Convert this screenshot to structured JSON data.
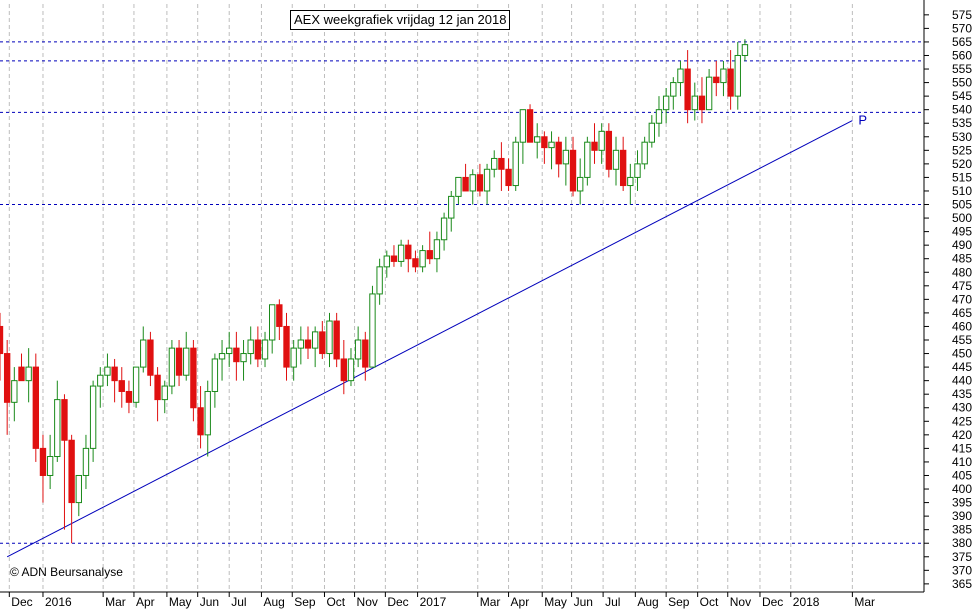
{
  "colors": {
    "up": "#1a8a1a",
    "down": "#e01010",
    "trendline": "#0000bb",
    "levels": "#0000bb",
    "grid": "#bdbdbd",
    "axis": "#000000"
  },
  "chart_data": {
    "type": "candlestick",
    "title": "AEX weekgrafiek vrijdag 12 jan 2018",
    "copyright": "© ADN Beursanalyse",
    "ylim": [
      362,
      579
    ],
    "y_ticks": [
      365,
      370,
      375,
      380,
      385,
      390,
      395,
      400,
      405,
      410,
      415,
      420,
      425,
      430,
      435,
      440,
      445,
      450,
      455,
      460,
      465,
      470,
      475,
      480,
      485,
      490,
      495,
      500,
      505,
      510,
      515,
      520,
      525,
      530,
      535,
      540,
      545,
      550,
      555,
      560,
      565,
      570,
      575
    ],
    "x_labels": [
      "Dec",
      "2016",
      "Mar",
      "Apr",
      "May",
      "Jun",
      "Jul",
      "Aug",
      "Sep",
      "Oct",
      "Nov",
      "Dec",
      "2017",
      "Mar",
      "Apr",
      "May",
      "Jun",
      "Jul",
      "Aug",
      "Sep",
      "Oct",
      "Nov",
      "Dec",
      "2018",
      "Mar"
    ],
    "x_label_weeks": [
      -4.7,
      0,
      8.4,
      12.7,
      17.3,
      21.6,
      26,
      30.5,
      34.8,
      39.3,
      43.5,
      47.8,
      52.3,
      60.7,
      65,
      69.7,
      73.8,
      78.2,
      82.7,
      87,
      91.4,
      95.6,
      100.1,
      104.4,
      113
    ],
    "x_week_range": [
      -6,
      123
    ],
    "weeks": [
      [
        -6,
        460,
        465,
        440,
        450
      ],
      [
        -5,
        450,
        455,
        420,
        432
      ],
      [
        -4,
        432,
        445,
        425,
        440
      ],
      [
        -3,
        445,
        450,
        440,
        440
      ],
      [
        -2,
        440,
        452,
        432,
        445
      ],
      [
        -1,
        445,
        450,
        410,
        415
      ],
      [
        0,
        415,
        420,
        395,
        405
      ],
      [
        1,
        405,
        420,
        400,
        412
      ],
      [
        2,
        412,
        440,
        410,
        433
      ],
      [
        3,
        433,
        435,
        385,
        418
      ],
      [
        4,
        418,
        420,
        380,
        395
      ],
      [
        5,
        395,
        405,
        390,
        405
      ],
      [
        6,
        405,
        420,
        400,
        415
      ],
      [
        7,
        415,
        440,
        410,
        438
      ],
      [
        8,
        438,
        445,
        430,
        442
      ],
      [
        9,
        442,
        450,
        438,
        445
      ],
      [
        10,
        445,
        448,
        432,
        440
      ],
      [
        11,
        440,
        445,
        430,
        436
      ],
      [
        12,
        436,
        440,
        428,
        432
      ],
      [
        13,
        432,
        445,
        430,
        445
      ],
      [
        14,
        445,
        460,
        443,
        455
      ],
      [
        15,
        455,
        458,
        438,
        442
      ],
      [
        16,
        442,
        445,
        425,
        433
      ],
      [
        17,
        433,
        440,
        428,
        438
      ],
      [
        18,
        438,
        455,
        435,
        452
      ],
      [
        19,
        452,
        455,
        438,
        442
      ],
      [
        20,
        442,
        458,
        440,
        452
      ],
      [
        21,
        452,
        455,
        425,
        430
      ],
      [
        22,
        430,
        438,
        415,
        420
      ],
      [
        23,
        420,
        440,
        412,
        436
      ],
      [
        24,
        436,
        450,
        430,
        448
      ],
      [
        25,
        448,
        455,
        440,
        450
      ],
      [
        26,
        450,
        458,
        445,
        452
      ],
      [
        27,
        452,
        458,
        440,
        447
      ],
      [
        28,
        447,
        455,
        440,
        450
      ],
      [
        29,
        450,
        460,
        446,
        455
      ],
      [
        30,
        455,
        460,
        445,
        448
      ],
      [
        31,
        448,
        458,
        445,
        455
      ],
      [
        32,
        455,
        468,
        450,
        468
      ],
      [
        33,
        468,
        470,
        455,
        460
      ],
      [
        34,
        460,
        465,
        440,
        445
      ],
      [
        35,
        445,
        455,
        440,
        452
      ],
      [
        36,
        452,
        460,
        446,
        455
      ],
      [
        37,
        455,
        460,
        448,
        452
      ],
      [
        38,
        452,
        460,
        445,
        458
      ],
      [
        39,
        458,
        462,
        448,
        450
      ],
      [
        40,
        450,
        465,
        445,
        462
      ],
      [
        41,
        462,
        465,
        445,
        448
      ],
      [
        42,
        448,
        455,
        435,
        440
      ],
      [
        43,
        440,
        452,
        438,
        448
      ],
      [
        44,
        448,
        460,
        445,
        455
      ],
      [
        45,
        455,
        458,
        440,
        445
      ],
      [
        46,
        445,
        475,
        445,
        472
      ],
      [
        47,
        472,
        485,
        468,
        482
      ],
      [
        48,
        482,
        488,
        478,
        486
      ],
      [
        49,
        486,
        490,
        482,
        484
      ],
      [
        50,
        484,
        492,
        482,
        490
      ],
      [
        51,
        490,
        492,
        480,
        485
      ],
      [
        52,
        485,
        488,
        480,
        482
      ],
      [
        53,
        482,
        490,
        480,
        488
      ],
      [
        54,
        488,
        495,
        483,
        485
      ],
      [
        55,
        485,
        495,
        480,
        492
      ],
      [
        56,
        492,
        502,
        488,
        500
      ],
      [
        57,
        500,
        510,
        495,
        508
      ],
      [
        58,
        508,
        515,
        505,
        515
      ],
      [
        59,
        515,
        520,
        510,
        510
      ],
      [
        60,
        510,
        518,
        505,
        516
      ],
      [
        61,
        516,
        520,
        508,
        510
      ],
      [
        62,
        510,
        520,
        505,
        518
      ],
      [
        63,
        518,
        525,
        515,
        522
      ],
      [
        64,
        522,
        528,
        510,
        518
      ],
      [
        65,
        518,
        522,
        510,
        512
      ],
      [
        66,
        512,
        530,
        510,
        528
      ],
      [
        67,
        528,
        540,
        520,
        540
      ],
      [
        68,
        540,
        542,
        528,
        528
      ],
      [
        69,
        528,
        535,
        522,
        530
      ],
      [
        70,
        530,
        532,
        520,
        526
      ],
      [
        71,
        526,
        532,
        518,
        528
      ],
      [
        72,
        528,
        530,
        515,
        520
      ],
      [
        73,
        520,
        530,
        512,
        525
      ],
      [
        74,
        525,
        530,
        508,
        510
      ],
      [
        75,
        510,
        522,
        505,
        515
      ],
      [
        76,
        515,
        530,
        512,
        528
      ],
      [
        77,
        528,
        535,
        520,
        525
      ],
      [
        78,
        525,
        535,
        520,
        532
      ],
      [
        79,
        532,
        535,
        515,
        518
      ],
      [
        80,
        518,
        530,
        512,
        525
      ],
      [
        81,
        525,
        530,
        510,
        512
      ],
      [
        82,
        512,
        520,
        505,
        515
      ],
      [
        83,
        515,
        525,
        510,
        520
      ],
      [
        84,
        520,
        530,
        518,
        528
      ],
      [
        85,
        528,
        538,
        526,
        535
      ],
      [
        86,
        535,
        545,
        530,
        540
      ],
      [
        87,
        540,
        548,
        535,
        545
      ],
      [
        88,
        545,
        552,
        540,
        550
      ],
      [
        89,
        550,
        558,
        545,
        555
      ],
      [
        90,
        555,
        562,
        535,
        540
      ],
      [
        91,
        540,
        550,
        536,
        545
      ],
      [
        92,
        545,
        552,
        535,
        540
      ],
      [
        93,
        540,
        555,
        540,
        552
      ],
      [
        94,
        552,
        558,
        545,
        550
      ],
      [
        95,
        550,
        558,
        545,
        555
      ],
      [
        96,
        555,
        562,
        540,
        545
      ],
      [
        97,
        545,
        565,
        540,
        560
      ],
      [
        98,
        560,
        566,
        558,
        564
      ]
    ],
    "levels": [
      380,
      505,
      539,
      558,
      565
    ],
    "trendline": {
      "from": [
        -5,
        375
      ],
      "to": [
        113,
        536
      ],
      "label": "P"
    }
  }
}
